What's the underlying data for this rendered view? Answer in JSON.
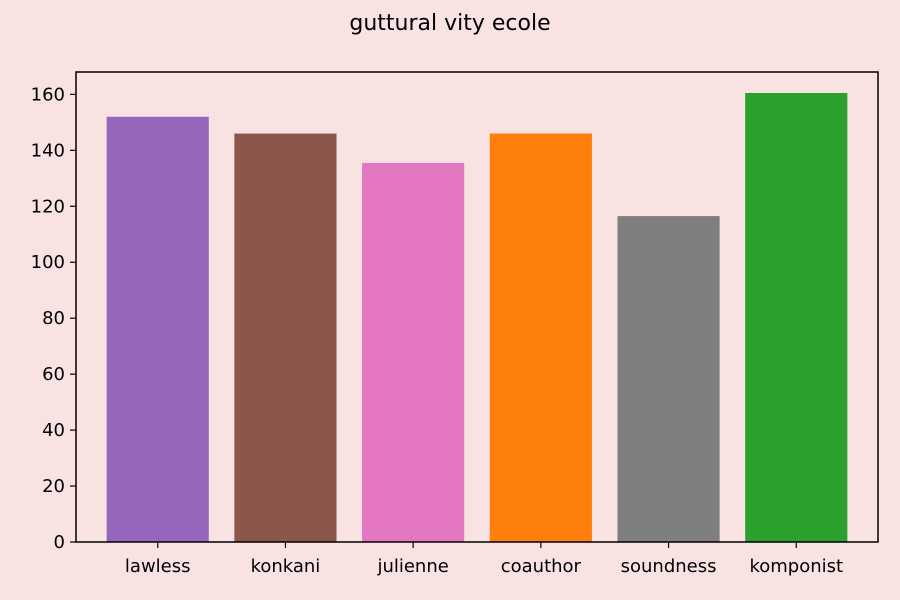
{
  "chart_data": {
    "type": "bar",
    "title": "guttural vity ecole",
    "xlabel": "",
    "ylabel": "",
    "categories": [
      "lawless",
      "konkani",
      "julienne",
      "coauthor",
      "soundness",
      "komponist"
    ],
    "values": [
      152,
      146,
      135.5,
      146,
      116.5,
      160.5
    ],
    "colors": [
      "#9467bd",
      "#8c564b",
      "#e377c2",
      "#ff7f0e",
      "#7f7f7f",
      "#2ca02c"
    ],
    "ylim": [
      0,
      168
    ],
    "yticks": [
      0,
      20,
      40,
      60,
      80,
      100,
      120,
      140,
      160
    ],
    "grid": false,
    "legend": "none"
  },
  "style": {
    "background": "#f9e2e2",
    "axis_color": "#000000"
  }
}
